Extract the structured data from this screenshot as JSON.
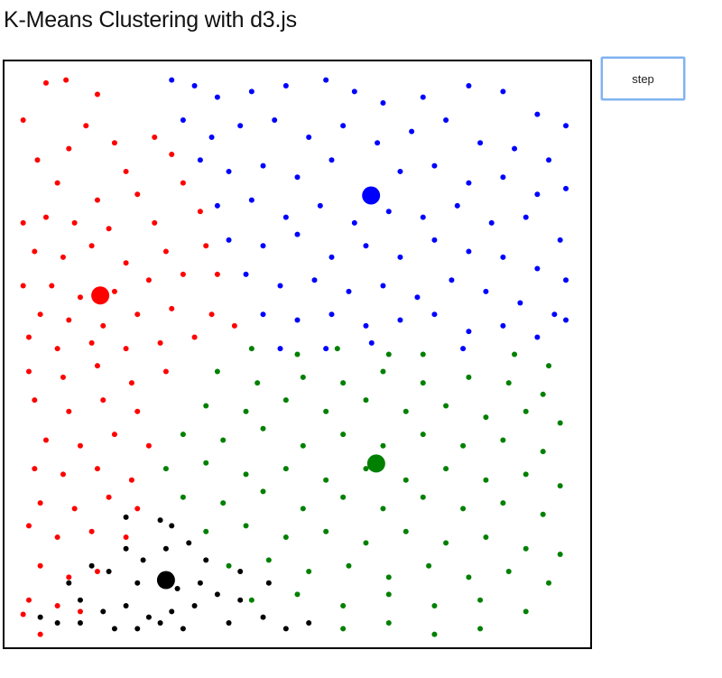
{
  "page": {
    "title": "K-Means Clustering with d3.js"
  },
  "controls": {
    "step_label": "step"
  },
  "chart_data": {
    "type": "scatter",
    "title": "",
    "xlabel": "",
    "ylabel": "",
    "xlim": [
      0,
      1
    ],
    "ylim": [
      0,
      1
    ],
    "grid": false,
    "legend": "none",
    "clusters": [
      {
        "color": "#ff0000",
        "centroid": [
          0.155,
          0.397
        ],
        "points": [
          [
            0.06,
            0.025
          ],
          [
            0.095,
            0.02
          ],
          [
            0.15,
            0.045
          ],
          [
            0.02,
            0.09
          ],
          [
            0.13,
            0.1
          ],
          [
            0.18,
            0.13
          ],
          [
            0.25,
            0.12
          ],
          [
            0.28,
            0.15
          ],
          [
            0.045,
            0.16
          ],
          [
            0.1,
            0.14
          ],
          [
            0.2,
            0.18
          ],
          [
            0.08,
            0.2
          ],
          [
            0.15,
            0.23
          ],
          [
            0.22,
            0.22
          ],
          [
            0.3,
            0.2
          ],
          [
            0.02,
            0.27
          ],
          [
            0.06,
            0.26
          ],
          [
            0.11,
            0.27
          ],
          [
            0.17,
            0.28
          ],
          [
            0.25,
            0.27
          ],
          [
            0.33,
            0.25
          ],
          [
            0.04,
            0.32
          ],
          [
            0.09,
            0.33
          ],
          [
            0.14,
            0.31
          ],
          [
            0.2,
            0.34
          ],
          [
            0.27,
            0.32
          ],
          [
            0.34,
            0.31
          ],
          [
            0.02,
            0.38
          ],
          [
            0.07,
            0.38
          ],
          [
            0.12,
            0.4
          ],
          [
            0.18,
            0.39
          ],
          [
            0.24,
            0.37
          ],
          [
            0.3,
            0.36
          ],
          [
            0.36,
            0.36
          ],
          [
            0.05,
            0.43
          ],
          [
            0.1,
            0.44
          ],
          [
            0.16,
            0.45
          ],
          [
            0.22,
            0.43
          ],
          [
            0.28,
            0.42
          ],
          [
            0.35,
            0.43
          ],
          [
            0.39,
            0.45
          ],
          [
            0.03,
            0.47
          ],
          [
            0.08,
            0.49
          ],
          [
            0.14,
            0.48
          ],
          [
            0.2,
            0.49
          ],
          [
            0.26,
            0.48
          ],
          [
            0.32,
            0.47
          ],
          [
            0.03,
            0.53
          ],
          [
            0.09,
            0.54
          ],
          [
            0.15,
            0.52
          ],
          [
            0.21,
            0.55
          ],
          [
            0.27,
            0.53
          ],
          [
            0.04,
            0.58
          ],
          [
            0.1,
            0.6
          ],
          [
            0.16,
            0.58
          ],
          [
            0.22,
            0.6
          ],
          [
            0.06,
            0.65
          ],
          [
            0.12,
            0.66
          ],
          [
            0.18,
            0.64
          ],
          [
            0.24,
            0.66
          ],
          [
            0.04,
            0.7
          ],
          [
            0.09,
            0.71
          ],
          [
            0.15,
            0.7
          ],
          [
            0.21,
            0.72
          ],
          [
            0.05,
            0.76
          ],
          [
            0.11,
            0.77
          ],
          [
            0.17,
            0.75
          ],
          [
            0.22,
            0.77
          ],
          [
            0.03,
            0.8
          ],
          [
            0.08,
            0.82
          ],
          [
            0.14,
            0.81
          ],
          [
            0.2,
            0.82
          ],
          [
            0.05,
            0.87
          ],
          [
            0.1,
            0.89
          ],
          [
            0.15,
            0.88
          ],
          [
            0.03,
            0.93
          ],
          [
            0.08,
            0.94
          ],
          [
            0.12,
            0.95
          ],
          [
            0.05,
            0.99
          ],
          [
            0.02,
            0.955
          ]
        ]
      },
      {
        "color": "#0000ff",
        "centroid": [
          0.629,
          0.222
        ],
        "points": [
          [
            0.28,
            0.02
          ],
          [
            0.32,
            0.03
          ],
          [
            0.36,
            0.05
          ],
          [
            0.42,
            0.04
          ],
          [
            0.48,
            0.03
          ],
          [
            0.55,
            0.02
          ],
          [
            0.6,
            0.04
          ],
          [
            0.65,
            0.06
          ],
          [
            0.72,
            0.05
          ],
          [
            0.8,
            0.03
          ],
          [
            0.86,
            0.04
          ],
          [
            0.92,
            0.08
          ],
          [
            0.97,
            0.1
          ],
          [
            0.3,
            0.09
          ],
          [
            0.35,
            0.12
          ],
          [
            0.4,
            0.1
          ],
          [
            0.46,
            0.09
          ],
          [
            0.52,
            0.12
          ],
          [
            0.58,
            0.1
          ],
          [
            0.64,
            0.13
          ],
          [
            0.7,
            0.11
          ],
          [
            0.76,
            0.09
          ],
          [
            0.82,
            0.13
          ],
          [
            0.88,
            0.14
          ],
          [
            0.94,
            0.16
          ],
          [
            0.33,
            0.16
          ],
          [
            0.38,
            0.18
          ],
          [
            0.44,
            0.17
          ],
          [
            0.5,
            0.19
          ],
          [
            0.56,
            0.16
          ],
          [
            0.68,
            0.18
          ],
          [
            0.74,
            0.17
          ],
          [
            0.8,
            0.2
          ],
          [
            0.86,
            0.19
          ],
          [
            0.92,
            0.22
          ],
          [
            0.97,
            0.21
          ],
          [
            0.36,
            0.24
          ],
          [
            0.42,
            0.23
          ],
          [
            0.48,
            0.26
          ],
          [
            0.54,
            0.24
          ],
          [
            0.6,
            0.27
          ],
          [
            0.66,
            0.25
          ],
          [
            0.72,
            0.26
          ],
          [
            0.78,
            0.24
          ],
          [
            0.84,
            0.27
          ],
          [
            0.9,
            0.26
          ],
          [
            0.96,
            0.3
          ],
          [
            0.38,
            0.3
          ],
          [
            0.44,
            0.31
          ],
          [
            0.5,
            0.29
          ],
          [
            0.56,
            0.33
          ],
          [
            0.62,
            0.31
          ],
          [
            0.68,
            0.33
          ],
          [
            0.74,
            0.3
          ],
          [
            0.8,
            0.32
          ],
          [
            0.86,
            0.33
          ],
          [
            0.92,
            0.35
          ],
          [
            0.97,
            0.37
          ],
          [
            0.41,
            0.36
          ],
          [
            0.47,
            0.38
          ],
          [
            0.53,
            0.37
          ],
          [
            0.59,
            0.39
          ],
          [
            0.65,
            0.38
          ],
          [
            0.71,
            0.4
          ],
          [
            0.77,
            0.37
          ],
          [
            0.83,
            0.39
          ],
          [
            0.89,
            0.41
          ],
          [
            0.95,
            0.43
          ],
          [
            0.44,
            0.43
          ],
          [
            0.5,
            0.44
          ],
          [
            0.56,
            0.43
          ],
          [
            0.62,
            0.45
          ],
          [
            0.68,
            0.44
          ],
          [
            0.74,
            0.43
          ],
          [
            0.8,
            0.46
          ],
          [
            0.86,
            0.45
          ],
          [
            0.92,
            0.47
          ],
          [
            0.97,
            0.44
          ],
          [
            0.47,
            0.49
          ],
          [
            0.55,
            0.49
          ],
          [
            0.63,
            0.48
          ],
          [
            0.79,
            0.49
          ]
        ]
      },
      {
        "color": "#008000",
        "centroid": [
          0.638,
          0.691
        ],
        "points": [
          [
            0.42,
            0.49
          ],
          [
            0.5,
            0.5
          ],
          [
            0.57,
            0.49
          ],
          [
            0.66,
            0.5
          ],
          [
            0.72,
            0.5
          ],
          [
            0.88,
            0.5
          ],
          [
            0.94,
            0.52
          ],
          [
            0.36,
            0.53
          ],
          [
            0.43,
            0.55
          ],
          [
            0.51,
            0.54
          ],
          [
            0.58,
            0.55
          ],
          [
            0.65,
            0.53
          ],
          [
            0.72,
            0.55
          ],
          [
            0.8,
            0.54
          ],
          [
            0.87,
            0.55
          ],
          [
            0.93,
            0.57
          ],
          [
            0.34,
            0.59
          ],
          [
            0.41,
            0.6
          ],
          [
            0.48,
            0.58
          ],
          [
            0.55,
            0.6
          ],
          [
            0.62,
            0.58
          ],
          [
            0.69,
            0.6
          ],
          [
            0.76,
            0.59
          ],
          [
            0.83,
            0.61
          ],
          [
            0.9,
            0.6
          ],
          [
            0.96,
            0.62
          ],
          [
            0.3,
            0.64
          ],
          [
            0.37,
            0.65
          ],
          [
            0.44,
            0.63
          ],
          [
            0.51,
            0.66
          ],
          [
            0.58,
            0.64
          ],
          [
            0.65,
            0.66
          ],
          [
            0.72,
            0.64
          ],
          [
            0.79,
            0.66
          ],
          [
            0.86,
            0.65
          ],
          [
            0.93,
            0.67
          ],
          [
            0.27,
            0.7
          ],
          [
            0.34,
            0.69
          ],
          [
            0.41,
            0.71
          ],
          [
            0.48,
            0.7
          ],
          [
            0.55,
            0.72
          ],
          [
            0.62,
            0.7
          ],
          [
            0.69,
            0.72
          ],
          [
            0.76,
            0.7
          ],
          [
            0.83,
            0.72
          ],
          [
            0.9,
            0.71
          ],
          [
            0.96,
            0.73
          ],
          [
            0.3,
            0.75
          ],
          [
            0.37,
            0.76
          ],
          [
            0.44,
            0.74
          ],
          [
            0.51,
            0.77
          ],
          [
            0.58,
            0.75
          ],
          [
            0.65,
            0.77
          ],
          [
            0.72,
            0.75
          ],
          [
            0.79,
            0.77
          ],
          [
            0.86,
            0.76
          ],
          [
            0.93,
            0.78
          ],
          [
            0.34,
            0.81
          ],
          [
            0.41,
            0.8
          ],
          [
            0.48,
            0.82
          ],
          [
            0.55,
            0.81
          ],
          [
            0.62,
            0.83
          ],
          [
            0.69,
            0.81
          ],
          [
            0.76,
            0.83
          ],
          [
            0.83,
            0.82
          ],
          [
            0.9,
            0.84
          ],
          [
            0.96,
            0.85
          ],
          [
            0.38,
            0.87
          ],
          [
            0.45,
            0.86
          ],
          [
            0.52,
            0.88
          ],
          [
            0.59,
            0.87
          ],
          [
            0.66,
            0.89
          ],
          [
            0.73,
            0.87
          ],
          [
            0.8,
            0.89
          ],
          [
            0.87,
            0.88
          ],
          [
            0.94,
            0.9
          ],
          [
            0.42,
            0.93
          ],
          [
            0.5,
            0.92
          ],
          [
            0.58,
            0.94
          ],
          [
            0.66,
            0.92
          ],
          [
            0.74,
            0.94
          ],
          [
            0.82,
            0.93
          ],
          [
            0.9,
            0.95
          ],
          [
            0.58,
            0.98
          ],
          [
            0.66,
            0.97
          ],
          [
            0.74,
            0.99
          ],
          [
            0.82,
            0.98
          ]
        ]
      },
      {
        "color": "#000000",
        "centroid": [
          0.27,
          0.895
        ],
        "points": [
          [
            0.2,
            0.785
          ],
          [
            0.26,
            0.79
          ],
          [
            0.28,
            0.8
          ],
          [
            0.31,
            0.83
          ],
          [
            0.2,
            0.84
          ],
          [
            0.14,
            0.87
          ],
          [
            0.17,
            0.88
          ],
          [
            0.22,
            0.9
          ],
          [
            0.29,
            0.91
          ],
          [
            0.33,
            0.9
          ],
          [
            0.1,
            0.9
          ],
          [
            0.12,
            0.93
          ],
          [
            0.16,
            0.95
          ],
          [
            0.2,
            0.94
          ],
          [
            0.24,
            0.96
          ],
          [
            0.28,
            0.95
          ],
          [
            0.32,
            0.94
          ],
          [
            0.36,
            0.92
          ],
          [
            0.4,
            0.93
          ],
          [
            0.05,
            0.96
          ],
          [
            0.08,
            0.97
          ],
          [
            0.12,
            0.97
          ],
          [
            0.18,
            0.98
          ],
          [
            0.22,
            0.98
          ],
          [
            0.26,
            0.97
          ],
          [
            0.3,
            0.98
          ],
          [
            0.38,
            0.97
          ],
          [
            0.44,
            0.96
          ],
          [
            0.48,
            0.98
          ],
          [
            0.52,
            0.97
          ],
          [
            0.4,
            0.88
          ],
          [
            0.45,
            0.9
          ],
          [
            0.34,
            0.86
          ],
          [
            0.23,
            0.86
          ],
          [
            0.27,
            0.84
          ]
        ]
      }
    ]
  }
}
